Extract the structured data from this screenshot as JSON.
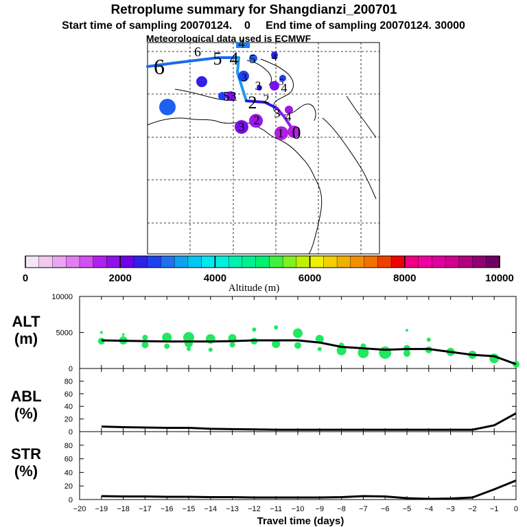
{
  "header": {
    "title": "Retroplume summary for Shangdianzi_200701",
    "subtitle": "Start time of sampling 20070124.    0     End time of sampling 20070124. 30000",
    "met_line": "Meteorological data used is ECMWF"
  },
  "colorbar": {
    "ticks": [
      "0",
      "2000",
      "4000",
      "6000",
      "8000",
      "10000"
    ],
    "label": "Altitude (m)",
    "colors": [
      "#f8e4f8",
      "#f0c8f0",
      "#e8a8f0",
      "#e080f0",
      "#d050f0",
      "#b020f0",
      "#9010e8",
      "#7000e8",
      "#3020e8",
      "#2040f0",
      "#2070f0",
      "#10a0f0",
      "#00c8f0",
      "#00e8f0",
      "#00f0e0",
      "#00f0b0",
      "#00f090",
      "#00f070",
      "#40f040",
      "#80f020",
      "#c0f000",
      "#f0f000",
      "#f0d000",
      "#f0b000",
      "#f09000",
      "#f07000",
      "#f04000",
      "#f00000",
      "#f00080",
      "#f000a0",
      "#e000a0",
      "#d00090",
      "#b00080",
      "#900070",
      "#700060"
    ]
  },
  "map": {
    "trajectory_labels": [
      "0",
      "1",
      "2",
      "3",
      "4",
      "5",
      "6"
    ],
    "track_colors": {
      "near": "#8a1cf0",
      "mid": "#2a10e8",
      "far": "#1a6af0",
      "farthest": "#1a80f0"
    },
    "clusters": [
      {
        "label": "1",
        "color": "#b020e0"
      },
      {
        "label": "2",
        "color": "#9a18e8"
      },
      {
        "label": "3",
        "color": "#7a10e8"
      },
      {
        "label": "4",
        "color": "#3020e8"
      },
      {
        "label": "5",
        "color": "#2040f0"
      },
      {
        "label": "6",
        "color": "#2060f0"
      }
    ]
  },
  "xaxis": {
    "label": "Travel time (days)"
  },
  "panels": {
    "alt": {
      "label_line1": "ALT",
      "label_line2": "(m)",
      "marker_color": "#20e860"
    },
    "abl": {
      "label_line1": "ABL",
      "label_line2": "(%)"
    },
    "str": {
      "label_line1": "STR",
      "label_line2": "(%)"
    }
  },
  "chart_data": [
    {
      "type": "line",
      "title": "ALT (m)",
      "xlabel": "Travel time (days)",
      "ylabel": "Altitude (m)",
      "xlim": [
        -20,
        0
      ],
      "ylim": [
        0,
        10000
      ],
      "xticks": [
        -20,
        -19,
        -18,
        -17,
        -16,
        -15,
        -14,
        -13,
        -12,
        -11,
        -10,
        -9,
        -8,
        -7,
        -6,
        -5,
        -4,
        -3,
        -2,
        -1,
        0
      ],
      "yticks": [
        0,
        5000,
        10000
      ],
      "series": [
        {
          "name": "mean altitude",
          "x": [
            -19,
            -18,
            -17,
            -16,
            -15,
            -14,
            -13,
            -12,
            -11,
            -10,
            -9,
            -8,
            -7,
            -6,
            -5,
            -4,
            -3,
            -2,
            -1,
            0
          ],
          "y": [
            3900,
            3850,
            3800,
            3750,
            3750,
            3750,
            3800,
            3900,
            3900,
            3900,
            3600,
            3000,
            2800,
            2600,
            2700,
            2700,
            2300,
            1900,
            1700,
            600
          ]
        },
        {
          "name": "cluster altitudes",
          "points": [
            {
              "x": -19,
              "y": 3800,
              "s": 5
            },
            {
              "x": -19,
              "y": 5000,
              "s": 2
            },
            {
              "x": -18,
              "y": 3900,
              "s": 6
            },
            {
              "x": -18,
              "y": 4700,
              "s": 2
            },
            {
              "x": -17,
              "y": 3300,
              "s": 5
            },
            {
              "x": -17,
              "y": 4300,
              "s": 4
            },
            {
              "x": -16,
              "y": 3100,
              "s": 4
            },
            {
              "x": -16,
              "y": 4300,
              "s": 7
            },
            {
              "x": -15,
              "y": 2700,
              "s": 3
            },
            {
              "x": -15,
              "y": 3500,
              "s": 6
            },
            {
              "x": -15,
              "y": 4300,
              "s": 8
            },
            {
              "x": -14,
              "y": 2600,
              "s": 3
            },
            {
              "x": -14,
              "y": 4100,
              "s": 7
            },
            {
              "x": -13,
              "y": 3300,
              "s": 4
            },
            {
              "x": -13,
              "y": 4200,
              "s": 6
            },
            {
              "x": -12,
              "y": 3800,
              "s": 5
            },
            {
              "x": -12,
              "y": 5400,
              "s": 3
            },
            {
              "x": -11,
              "y": 3400,
              "s": 6
            },
            {
              "x": -11,
              "y": 5700,
              "s": 3
            },
            {
              "x": -10,
              "y": 3200,
              "s": 5
            },
            {
              "x": -10,
              "y": 4900,
              "s": 7
            },
            {
              "x": -9,
              "y": 2700,
              "s": 3
            },
            {
              "x": -9,
              "y": 4100,
              "s": 6
            },
            {
              "x": -8,
              "y": 2500,
              "s": 7
            },
            {
              "x": -8,
              "y": 3200,
              "s": 4
            },
            {
              "x": -7,
              "y": 2200,
              "s": 8
            },
            {
              "x": -7,
              "y": 3100,
              "s": 4
            },
            {
              "x": -6,
              "y": 2200,
              "s": 9
            },
            {
              "x": -5,
              "y": 2100,
              "s": 5
            },
            {
              "x": -5,
              "y": 2800,
              "s": 5
            },
            {
              "x": -5,
              "y": 5300,
              "s": 2
            },
            {
              "x": -4,
              "y": 2600,
              "s": 5
            },
            {
              "x": -4,
              "y": 4000,
              "s": 3
            },
            {
              "x": -3,
              "y": 2300,
              "s": 6
            },
            {
              "x": -2,
              "y": 1900,
              "s": 6
            },
            {
              "x": -1,
              "y": 1400,
              "s": 7
            },
            {
              "x": 0,
              "y": 600,
              "s": 5
            }
          ]
        }
      ]
    },
    {
      "type": "line",
      "title": "ABL (%)",
      "xlim": [
        -20,
        0
      ],
      "ylim": [
        0,
        100
      ],
      "yticks": [
        0,
        20,
        40,
        60,
        80
      ],
      "series": [
        {
          "name": "ABL fraction",
          "x": [
            -19,
            -18,
            -17,
            -16,
            -15,
            -14,
            -13,
            -12,
            -11,
            -10,
            -9,
            -8,
            -7,
            -6,
            -5,
            -4,
            -3,
            -2,
            -1,
            0
          ],
          "y": [
            8,
            7,
            6.5,
            6,
            6,
            4.5,
            4,
            3.5,
            3,
            3,
            3,
            3,
            3,
            3,
            3,
            3,
            3,
            3,
            10,
            29
          ]
        }
      ]
    },
    {
      "type": "line",
      "title": "STR (%)",
      "xlim": [
        -20,
        0
      ],
      "ylim": [
        0,
        100
      ],
      "yticks": [
        0,
        20,
        40,
        60,
        80
      ],
      "series": [
        {
          "name": "STR fraction",
          "x": [
            -19,
            -18,
            -17,
            -16,
            -15,
            -14,
            -13,
            -12,
            -11,
            -10,
            -9,
            -8,
            -7,
            -6,
            -5,
            -4,
            -3,
            -2,
            -1,
            0
          ],
          "y": [
            5,
            4.5,
            4.5,
            4,
            4,
            3.5,
            3.5,
            3,
            3,
            3,
            3,
            3.5,
            5,
            4.5,
            2,
            1,
            1.5,
            3,
            15,
            28
          ]
        }
      ]
    }
  ]
}
